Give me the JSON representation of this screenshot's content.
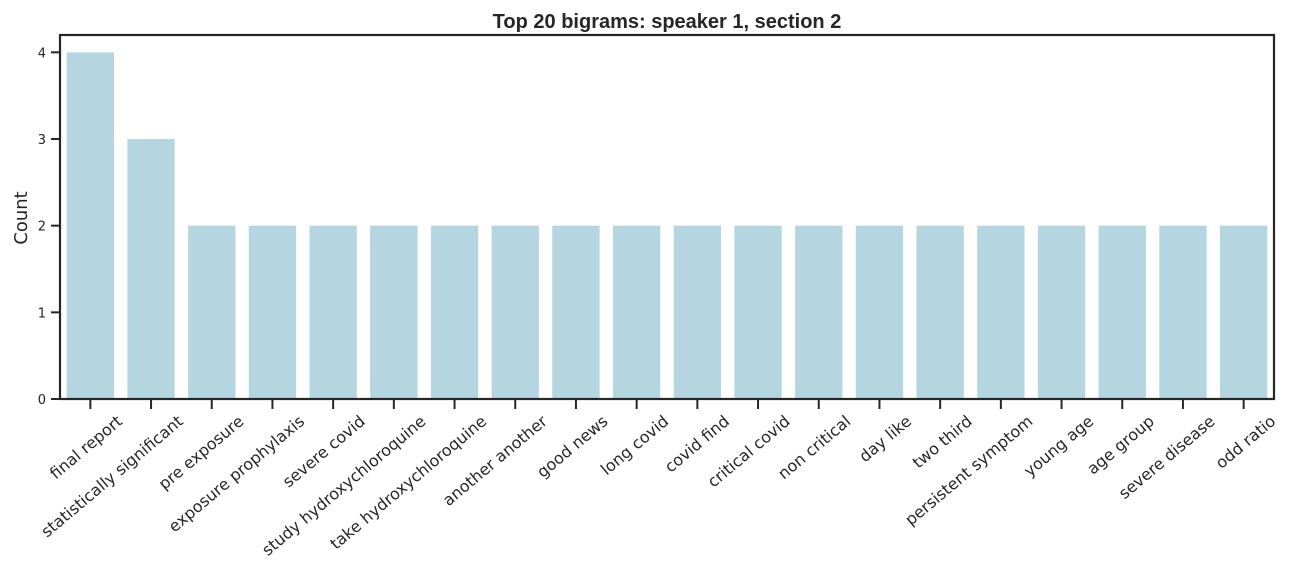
{
  "chart_data": {
    "type": "bar",
    "title": "Top 20 bigrams: speaker 1, section 2",
    "xlabel": "",
    "ylabel": "Count",
    "ylim": [
      0,
      4.2
    ],
    "yticks": [
      0,
      1,
      2,
      3,
      4
    ],
    "categories": [
      "final report",
      "statistically significant",
      "pre exposure",
      "exposure prophylaxis",
      "severe covid",
      "study hydroxychloroquine",
      "take hydroxychloroquine",
      "another another",
      "good news",
      "long covid",
      "covid find",
      "critical covid",
      "non critical",
      "day like",
      "two third",
      "persistent symptom",
      "young age",
      "age group",
      "severe disease",
      "odd ratio"
    ],
    "values": [
      4,
      3,
      2,
      2,
      2,
      2,
      2,
      2,
      2,
      2,
      2,
      2,
      2,
      2,
      2,
      2,
      2,
      2,
      2,
      2
    ],
    "bar_color": "#b5d6e1",
    "grid": false,
    "legend": "none"
  }
}
